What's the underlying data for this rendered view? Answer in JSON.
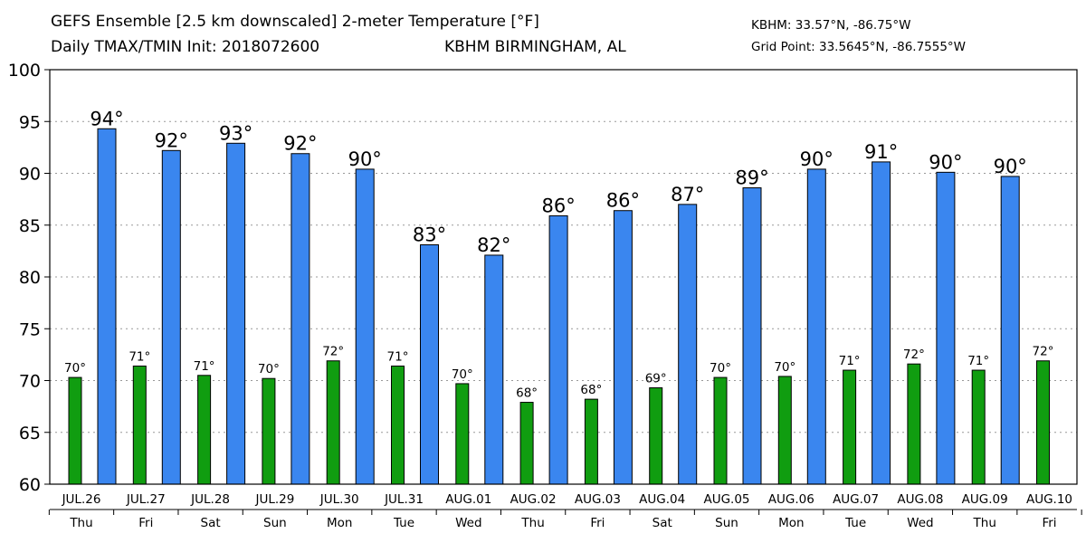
{
  "header": {
    "title_line1": "GEFS Ensemble [2.5 km downscaled] 2-meter Temperature [°F]",
    "title_line2": "Daily TMAX/TMIN Init: 2018072600",
    "location": "KBHM BIRMINGHAM, AL",
    "station": "KBHM: 33.57°N, -86.75°W",
    "grid_point": "Grid Point: 33.5645°N, -86.7555°W"
  },
  "chart_data": {
    "type": "bar",
    "title": "GEFS Ensemble [2.5 km downscaled] 2-meter Temperature [°F]",
    "categories": [
      "JUL.26",
      "JUL.27",
      "JUL.28",
      "JUL.29",
      "JUL.30",
      "JUL.31",
      "AUG.01",
      "AUG.02",
      "AUG.03",
      "AUG.04",
      "AUG.05",
      "AUG.06",
      "AUG.07",
      "AUG.08",
      "AUG.09",
      "AUG.10"
    ],
    "weekdays": [
      "Thu",
      "Fri",
      "Sat",
      "Sun",
      "Mon",
      "Tue",
      "Wed",
      "Thu",
      "Fri",
      "Sat",
      "Sun",
      "Mon",
      "Tue",
      "Wed",
      "Thu",
      "Fri"
    ],
    "series": [
      {
        "id": "tmin",
        "color": "#109d10",
        "values": [
          70.3,
          71.4,
          70.5,
          70.2,
          71.9,
          71.4,
          69.7,
          67.9,
          68.2,
          69.3,
          70.3,
          70.4,
          71.0,
          71.6,
          71.0,
          71.9
        ],
        "labels": [
          "70°",
          "71°",
          "71°",
          "70°",
          "72°",
          "71°",
          "70°",
          "68°",
          "68°",
          "69°",
          "70°",
          "70°",
          "71°",
          "72°",
          "71°",
          "72°"
        ]
      },
      {
        "id": "tmax",
        "color": "#3a86ef",
        "values": [
          94.3,
          92.2,
          92.9,
          91.9,
          90.4,
          83.1,
          82.1,
          85.9,
          86.4,
          87.0,
          88.6,
          90.4,
          91.1,
          90.1,
          89.7,
          null
        ],
        "labels": [
          "94°",
          "92°",
          "93°",
          "92°",
          "90°",
          "83°",
          "82°",
          "86°",
          "86°",
          "87°",
          "89°",
          "90°",
          "91°",
          "90°",
          "90°",
          ""
        ]
      }
    ],
    "ylim": [
      60,
      100
    ],
    "yticks": [
      60,
      65,
      70,
      75,
      80,
      85,
      90,
      95,
      100
    ],
    "grid": true,
    "legend": "none"
  }
}
